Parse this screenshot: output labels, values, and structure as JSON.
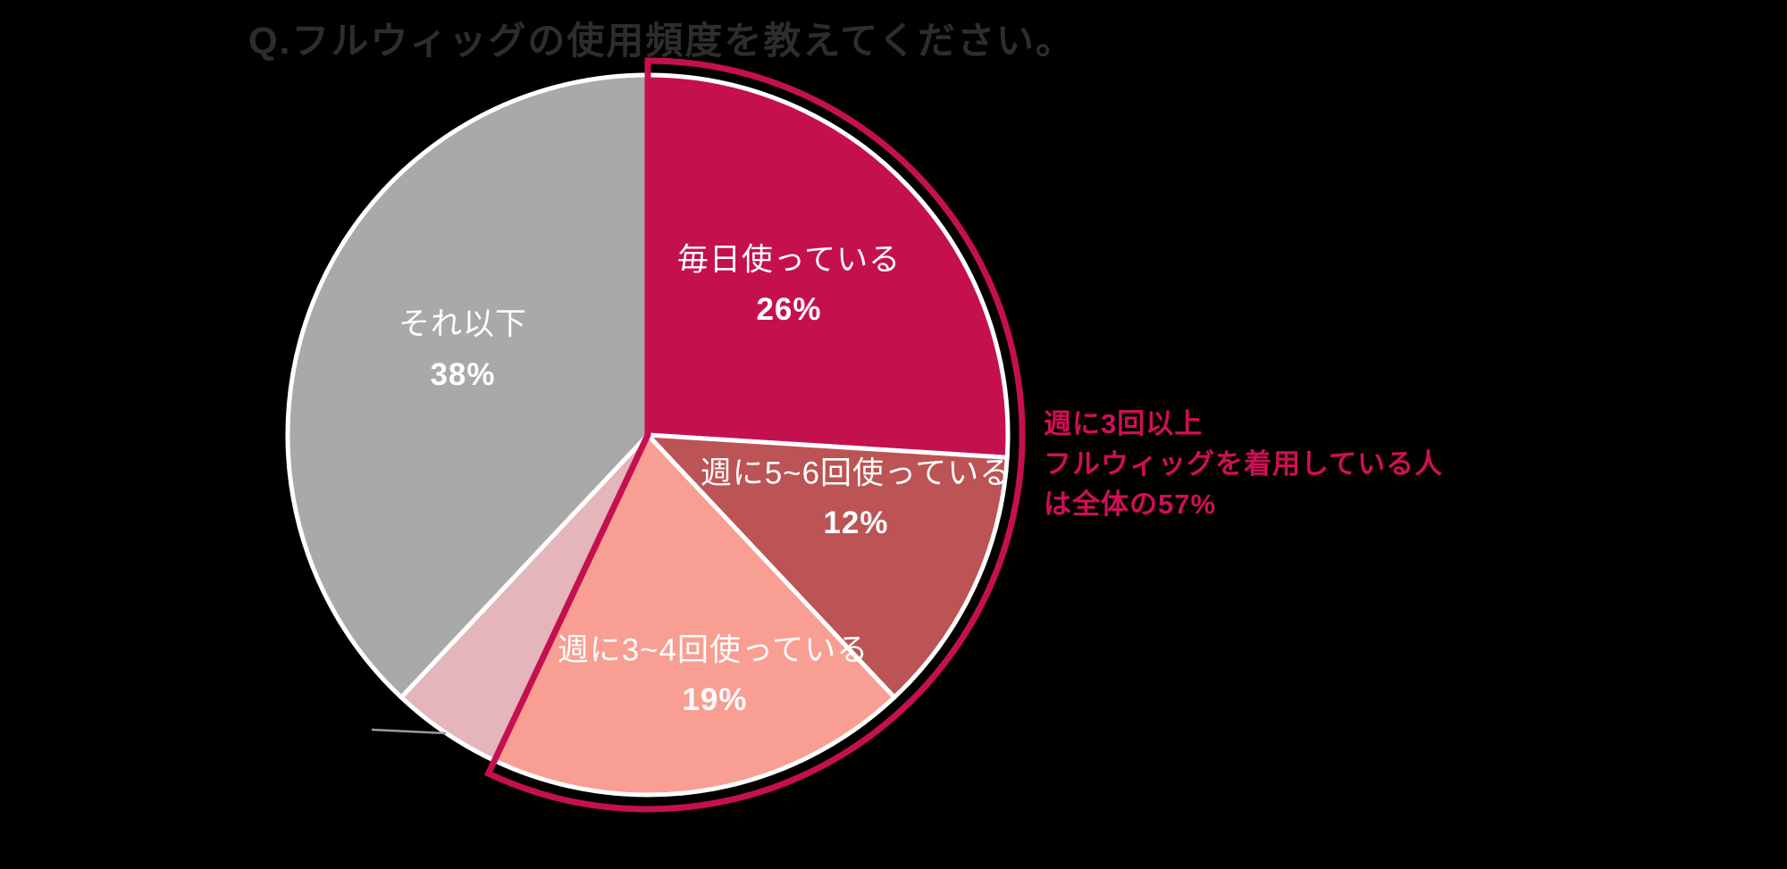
{
  "page": {
    "background_color": "#000000"
  },
  "header": {
    "title": "Q.フルウィッグの使用頻度を教えてください。",
    "title_color": "#2D2D2F"
  },
  "chart_data": {
    "type": "pie",
    "title": "Q.フルウィッグの使用頻度を教えてください。",
    "unit": "%",
    "direction": "clockwise",
    "start_angle_deg": 90,
    "slice_border_color": "#FFFFFF",
    "leader_line_color": "#9B9B9B",
    "slices": [
      {
        "label": "毎日使っている",
        "value": 26,
        "percent_label": "26%",
        "color": "#C5104F",
        "text_color": "#FFFFFF"
      },
      {
        "label": "週に5~6回使っている",
        "value": 12,
        "percent_label": "12%",
        "color": "#BC5354",
        "text_color": "#FFFFFF"
      },
      {
        "label": "週に3~4回使っている",
        "value": 19,
        "percent_label": "19%",
        "color": "#F99E92",
        "text_color": "#FFFFFF"
      },
      {
        "label": "",
        "value": 5,
        "percent_label": "",
        "color": "#E4B5BA",
        "text_color": "#FFFFFF"
      },
      {
        "label": "それ以下",
        "value": 38,
        "percent_label": "38%",
        "color": "#A9A9A9",
        "text_color": "#FFFFFF"
      }
    ],
    "highlight": {
      "span_percent": 57,
      "covers_slices": [
        0,
        1,
        2
      ],
      "outline_color": "#C5104F"
    },
    "annotation": {
      "lines": [
        "週に3回以上",
        "フルウィッグを着用している人",
        "は全体の57%"
      ],
      "color": "#CF0F55"
    }
  }
}
